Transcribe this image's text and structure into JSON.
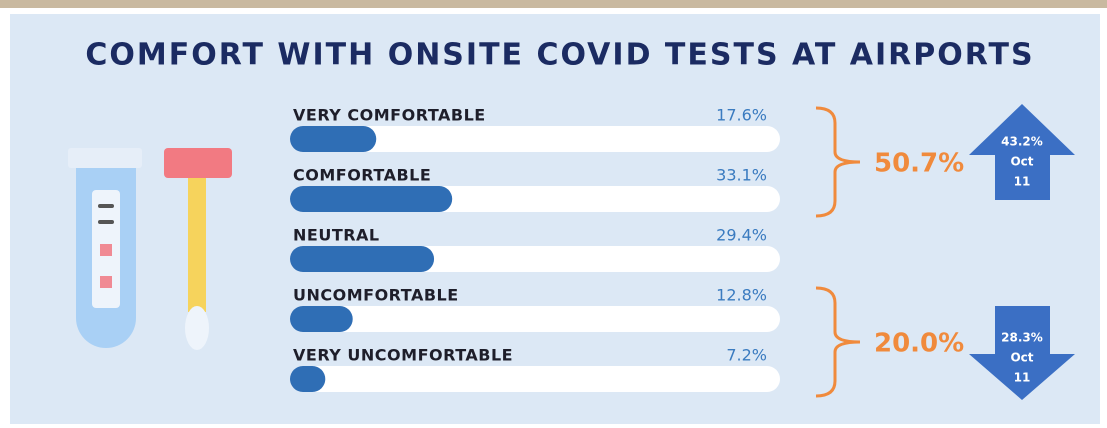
{
  "chart_data": {
    "type": "hbar",
    "title": "COMFORT WITH ONSITE COVID TESTS AT AIRPORTS",
    "categories": [
      "VERY COMFORTABLE",
      "COMFORTABLE",
      "NEUTRAL",
      "UNCOMFORTABLE",
      "VERY UNCOMFORTABLE"
    ],
    "values": [
      17.6,
      33.1,
      29.4,
      12.8,
      7.2
    ],
    "value_labels": [
      "17.6%",
      "33.1%",
      "29.4%",
      "12.8%",
      "7.2%"
    ],
    "color": "#2f6eb5",
    "xlim": [
      0,
      100
    ],
    "annotations": [
      {
        "text": "50.7%",
        "from": 0,
        "to": 1,
        "arrow": "up",
        "arrow_text": [
          "43.2%",
          "Oct",
          "11"
        ]
      },
      {
        "text": "20.0%",
        "from": 3,
        "to": 4,
        "arrow": "down",
        "arrow_text": [
          "28.3%",
          "Oct",
          "11"
        ]
      }
    ]
  }
}
